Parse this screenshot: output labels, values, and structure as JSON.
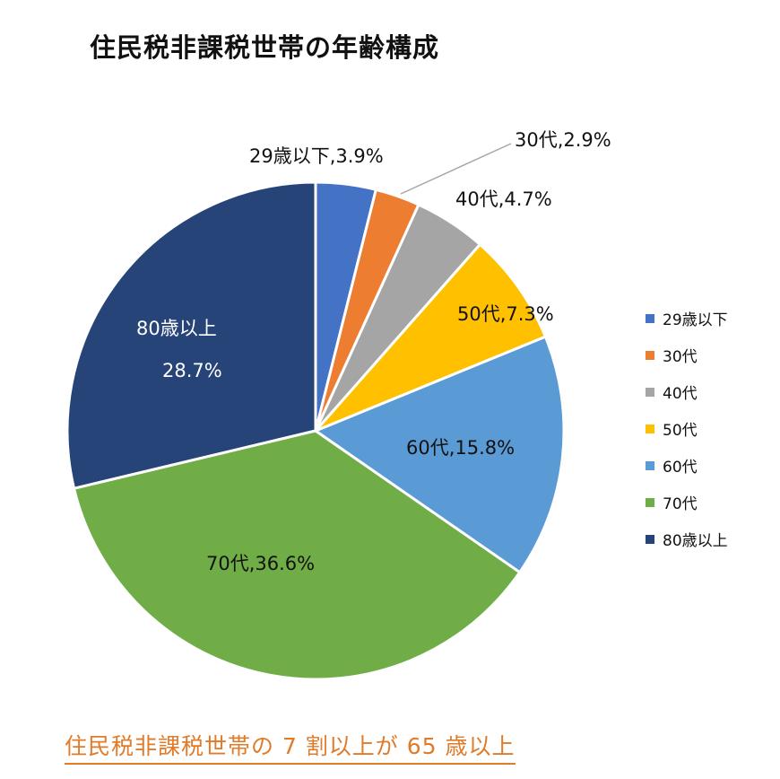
{
  "title": "住民税非課税世帯の年齢構成",
  "note": "住民税非課税世帯の 7 割以上が 65 歳以上",
  "chart_data": {
    "type": "pie",
    "title": "住民税非課税世帯の年齢構成",
    "categories": [
      "29歳以下",
      "30代",
      "40代",
      "50代",
      "60代",
      "70代",
      "80歳以上"
    ],
    "values": [
      3.9,
      2.9,
      4.7,
      7.3,
      15.8,
      36.6,
      28.7
    ],
    "colors": [
      "#4472c4",
      "#ed7d31",
      "#a5a5a5",
      "#ffc000",
      "#5b9bd5",
      "#70ad47",
      "#264478"
    ],
    "data_labels": [
      "29歳以下,3.9%",
      "30代,2.9%",
      "40代,4.7%",
      "50代,7.3%",
      "60代,15.8%",
      "70代,36.6%",
      "80歳以上 28.7%"
    ],
    "legend_position": "right",
    "unit": "%"
  },
  "labels": {
    "l0": "29歳以下,3.9%",
    "l1": "30代,2.9%",
    "l2": "40代,4.7%",
    "l3": "50代,7.3%",
    "l4": "60代,15.8%",
    "l5": "70代,36.6%",
    "l6a": "80歳以上",
    "l6b": "28.7%"
  },
  "legend": [
    "29歳以下",
    "30代",
    "40代",
    "50代",
    "60代",
    "70代",
    "80歳以上"
  ]
}
